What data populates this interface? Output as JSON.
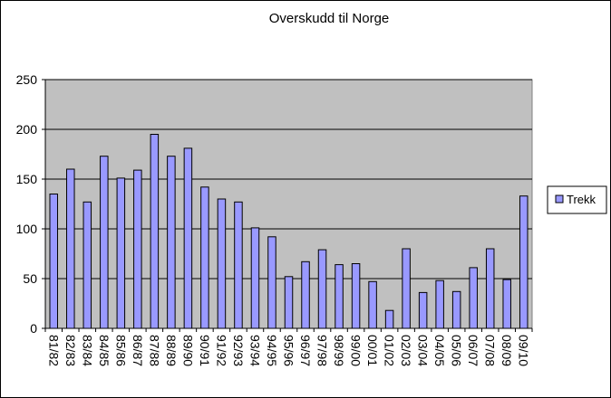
{
  "chart_data": {
    "type": "bar",
    "title": "Overskudd til Norge",
    "xlabel": "",
    "ylabel": "",
    "ylim": [
      0,
      250
    ],
    "yticks": [
      0,
      50,
      100,
      150,
      200,
      250
    ],
    "grid": true,
    "legend_position": "right",
    "categories": [
      "81/82",
      "82/83",
      "83/84",
      "84/85",
      "85/86",
      "86/87",
      "87/88",
      "88/89",
      "89/90",
      "90/91",
      "91/92",
      "92/93",
      "93/94",
      "94/95",
      "95/96",
      "96/97",
      "97/98",
      "98/99",
      "99/00",
      "00/01",
      "01/02",
      "02/03",
      "03/04",
      "04/05",
      "05/06",
      "06/07",
      "07/08",
      "08/09",
      "09/10"
    ],
    "series": [
      {
        "name": "Trekk",
        "color": "#9999ff",
        "values": [
          135,
          160,
          127,
          173,
          151,
          159,
          195,
          173,
          181,
          142,
          130,
          127,
          101,
          92,
          52,
          67,
          79,
          64,
          65,
          47,
          18,
          80,
          36,
          48,
          37,
          61,
          80,
          49,
          133
        ]
      }
    ],
    "colors": {
      "plot_background": "#c0c0c0",
      "bar_fill": "#9999ff",
      "bar_stroke": "#000000",
      "gridline": "#000000"
    }
  }
}
